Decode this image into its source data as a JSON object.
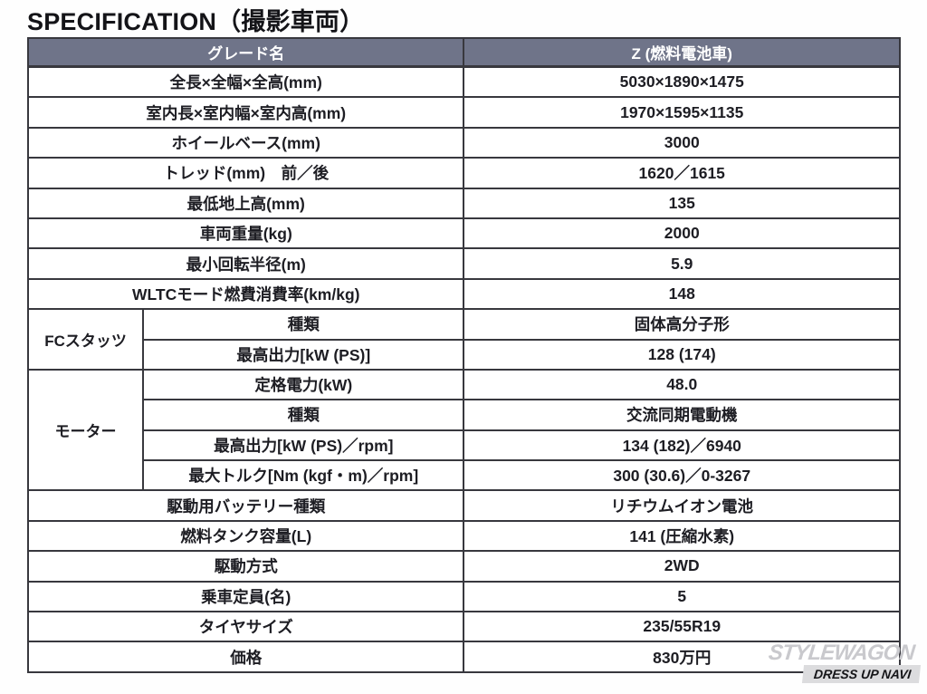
{
  "page": {
    "title": "SPECIFICATION（撮影車両）"
  },
  "colors": {
    "header_bg": "#6f7489",
    "header_text": "#ffffff",
    "border": "#38383e",
    "text": "#1d1d23",
    "watermark_gray": "#c9c9cd"
  },
  "table": {
    "header": {
      "grade_label": "グレード名",
      "grade_value": "Z (燃料電池車)"
    },
    "rows": [
      {
        "label": "全長×全幅×全高(mm)",
        "value": "5030×1890×1475"
      },
      {
        "label": "室内長×室内幅×室内高(mm)",
        "value": "1970×1595×1135"
      },
      {
        "label": "ホイールベース(mm)",
        "value": "3000"
      },
      {
        "label": "トレッド(mm)　前／後",
        "value": "1620／1615"
      },
      {
        "label": "最低地上高(mm)",
        "value": "135"
      },
      {
        "label": "車両重量(kg)",
        "value": "2000"
      },
      {
        "label": "最小回転半径(m)",
        "value": "5.9"
      },
      {
        "label": "WLTCモード燃費消費率(km/kg)",
        "value": "148"
      },
      {
        "group": "FCスタッツ",
        "group_span": 2,
        "label": "種類",
        "value": "固体高分子形"
      },
      {
        "in_group": true,
        "label": "最高出力[kW (PS)]",
        "value": "128 (174)"
      },
      {
        "group": "モーター",
        "group_span": 4,
        "label": "定格電力(kW)",
        "value": "48.0"
      },
      {
        "in_group": true,
        "label": "種類",
        "value": "交流同期電動機"
      },
      {
        "in_group": true,
        "label": "最高出力[kW (PS)／rpm]",
        "value": "134 (182)／6940"
      },
      {
        "in_group": true,
        "label": "最大トルク[Nm (kgf・m)／rpm]",
        "value": "300 (30.6)／0-3267"
      },
      {
        "label": "駆動用バッテリー種類",
        "value": "リチウムイオン電池"
      },
      {
        "label": "燃料タンク容量(L)",
        "value": "141 (圧縮水素)"
      },
      {
        "label": "駆動方式",
        "value": "2WD"
      },
      {
        "label": "乗車定員(名)",
        "value": "5"
      },
      {
        "label": "タイヤサイズ",
        "value": "235/55R19"
      },
      {
        "label": "価格",
        "value": "830万円"
      }
    ]
  },
  "watermark": {
    "line1": "STYLEWAGON",
    "line2": "DRESS UP NAVI"
  }
}
